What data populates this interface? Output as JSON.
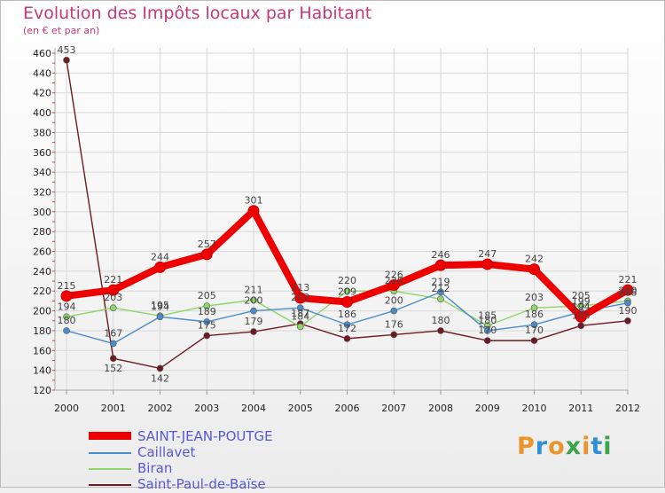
{
  "title": "Evolution des Impôts locaux par Habitant",
  "subtitle": "(en € et par an)",
  "logo": {
    "text": "Proxiti",
    "colors": [
      "#e8952e",
      "#2f8fd6",
      "#e8952e",
      "#3fa34d",
      "#e8952e",
      "#2f8fd6",
      "#3fa34d"
    ]
  },
  "chart_data": {
    "type": "line",
    "x": [
      "2000",
      "2001",
      "2002",
      "2003",
      "2004",
      "2005",
      "2006",
      "2007",
      "2008",
      "2009",
      "2010",
      "2011",
      "2012"
    ],
    "ylim": [
      120,
      460
    ],
    "yticks": [
      120,
      140,
      160,
      180,
      200,
      220,
      240,
      260,
      280,
      300,
      320,
      340,
      360,
      380,
      400,
      420,
      440,
      460
    ],
    "series": [
      {
        "name": "SAINT-JEAN-POUTGE",
        "color": "#ee0000",
        "values": [
          215,
          221,
          244,
          257,
          301,
          213,
          209,
          226,
          246,
          247,
          242,
          194,
          221
        ]
      },
      {
        "name": "Caillavet",
        "color": "#4a8bc8",
        "values": [
          180,
          167,
          194,
          189,
          200,
          203,
          186,
          200,
          219,
          180,
          186,
          199,
          208
        ]
      },
      {
        "name": "Biran",
        "color": "#8ed468",
        "values": [
          194,
          203,
          195,
          205,
          211,
          184,
          220,
          220,
          212,
          185,
          203,
          205,
          210
        ]
      },
      {
        "name": "Saint-Paul-de-Baïse",
        "color": "#6e1a22",
        "values": [
          453,
          152,
          142,
          175,
          179,
          187,
          172,
          176,
          180,
          170,
          170,
          185,
          190
        ]
      }
    ]
  }
}
